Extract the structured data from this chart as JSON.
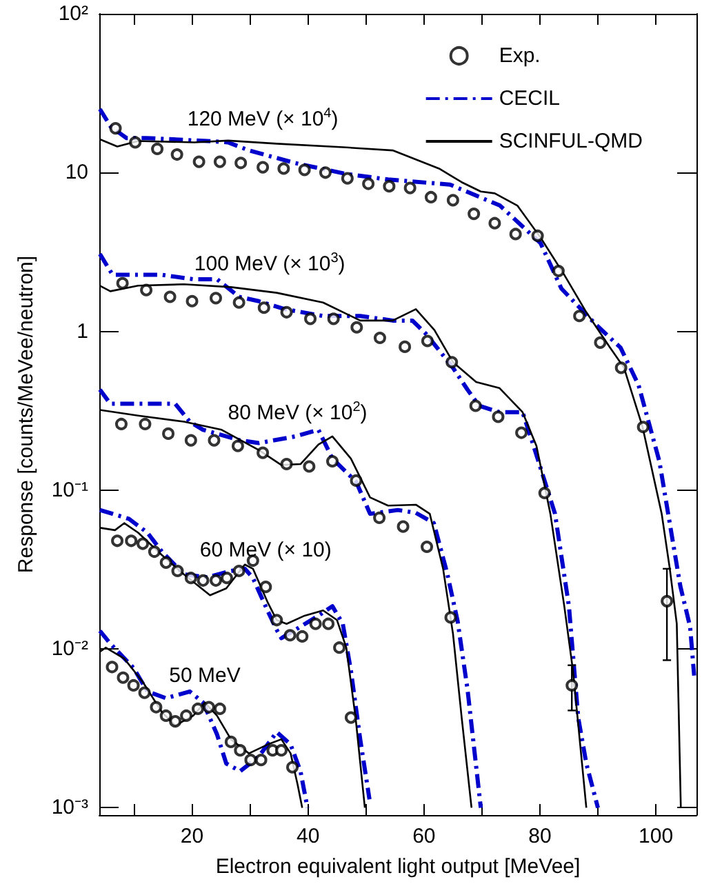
{
  "chart_data": {
    "type": "line",
    "xlabel": "Electron equivalent light output [MeVee]",
    "ylabel": "Response [counts/MeVee/neutron]",
    "annotations": [
      "120 MeV (× 10$^{4}$)",
      "100 MeV (× 10$^{3}$)",
      "80 MeV (× 10$^{2}$)",
      "60 MeV (× 10)",
      "50 MeV"
    ],
    "xlim": [
      4,
      107
    ],
    "ylim": [
      0.0009,
      100
    ],
    "log": "y",
    "legend": "top right",
    "marker": "none",
    "xticks": [
      {
        "value": 10,
        "label": null
      },
      20,
      {
        "value": 30,
        "label": null
      },
      40,
      {
        "value": 50,
        "label": null
      },
      60,
      {
        "value": 70,
        "label": null
      },
      80,
      {
        "value": 90,
        "label": null
      },
      100
    ],
    "yticks": [
      {
        "value": 0.001,
        "label": "10⁻³"
      },
      {
        "value": 0.01,
        "label": "10⁻²"
      },
      {
        "value": 0.1,
        "label": "10⁻¹"
      },
      1,
      10,
      {
        "value": 100,
        "label": "10²"
      }
    ],
    "series": [
      {
        "name": "Exp.",
        "type": "scatter",
        "marker": "circle",
        "color": "#000000",
        "x": [
          6.8,
          10.2,
          14.0,
          17.4,
          21.2,
          24.8,
          28.4,
          32.2,
          35.8,
          39.4,
          43.0,
          46.8,
          50.4,
          54.0,
          57.6,
          61.2,
          65.0,
          68.6,
          72.2,
          75.8,
          79.6,
          83.2,
          86.8,
          90.4,
          94.0,
          97.8,
          101.9
        ],
        "values": [
          19.0,
          15.5,
          14.1,
          13.0,
          11.7,
          11.7,
          11.5,
          10.8,
          10.6,
          10.4,
          10.0,
          9.2,
          8.5,
          8.2,
          8.0,
          7.0,
          6.7,
          5.5,
          4.8,
          4.1,
          4.0,
          2.4,
          1.25,
          0.85,
          0.59,
          0.25,
          0.02
        ],
        "errors": [
          null,
          null,
          null,
          null,
          null,
          null,
          null,
          null,
          null,
          null,
          null,
          null,
          null,
          null,
          null,
          null,
          null,
          null,
          null,
          null,
          null,
          null,
          null,
          null,
          null,
          null,
          [
            0.0085,
            0.032
          ]
        ]
      },
      {
        "type": "scatter",
        "marker": "circle",
        "color": "#000000",
        "x": [
          8.0,
          12.1,
          16.2,
          20.0,
          24.1,
          28.1,
          32.4,
          36.3,
          40.4,
          44.4,
          48.4,
          52.4,
          56.7,
          60.6,
          64.8,
          68.9,
          72.8,
          76.8,
          80.8,
          85.5
        ],
        "values": [
          2.01,
          1.82,
          1.65,
          1.55,
          1.62,
          1.52,
          1.41,
          1.32,
          1.2,
          1.2,
          1.06,
          0.91,
          0.8,
          0.87,
          0.64,
          0.34,
          0.29,
          0.23,
          0.096,
          0.0059
        ],
        "errors": [
          null,
          null,
          null,
          null,
          null,
          null,
          null,
          null,
          null,
          null,
          null,
          null,
          null,
          null,
          null,
          null,
          null,
          null,
          null,
          [
            0.0041,
            0.0079
          ]
        ]
      },
      {
        "type": "scatter",
        "marker": "circle",
        "color": "#000000",
        "x": [
          7.8,
          11.9,
          15.9,
          19.8,
          23.8,
          27.9,
          32.2,
          36.3,
          40.2,
          44.2,
          48.3,
          52.3,
          56.4,
          60.5,
          64.6
        ],
        "values": [
          0.261,
          0.261,
          0.227,
          0.206,
          0.206,
          0.19,
          0.172,
          0.146,
          0.141,
          0.152,
          0.115,
          0.067,
          0.059,
          0.044,
          0.0158
        ]
      },
      {
        "type": "scatter",
        "marker": "circle",
        "color": "#000000",
        "x": [
          7.1,
          9.5,
          11.5,
          13.5,
          15.5,
          17.5,
          19.8,
          21.9,
          24.1,
          26.0,
          28.1,
          30.5,
          32.7,
          34.6,
          36.9,
          39.0,
          41.3,
          43.5,
          45.4,
          47.4
        ],
        "values": [
          0.048,
          0.048,
          0.046,
          0.041,
          0.035,
          0.031,
          0.028,
          0.027,
          0.027,
          0.028,
          0.031,
          0.036,
          0.0246,
          0.0152,
          0.0122,
          0.012,
          0.0144,
          0.0144,
          0.0102,
          0.0037
        ]
      },
      {
        "type": "scatter",
        "marker": "circle",
        "color": "#000000",
        "x": [
          6.2,
          8.1,
          9.9,
          11.8,
          13.8,
          15.5,
          17.1,
          19.0,
          21.0,
          22.9,
          24.8,
          26.7,
          28.3,
          30.1,
          31.9,
          33.9,
          35.4,
          37.3
        ],
        "values": [
          0.0077,
          0.0066,
          0.0059,
          0.0053,
          0.0043,
          0.0038,
          0.0035,
          0.0038,
          0.0042,
          0.0043,
          0.0042,
          0.0026,
          0.0023,
          0.002,
          0.002,
          0.0023,
          0.0023,
          0.0018
        ]
      },
      {
        "name": "CECIL",
        "type": "line",
        "line_style": "dashed",
        "color": "#0000cc",
        "x": [
          4.1,
          6.0,
          8.7,
          12.1,
          22.6,
          26.2,
          29.8,
          37.7,
          46.6,
          53.8,
          64.5,
          73.1,
          80.1,
          83.7,
          89.7,
          93.9,
          97.0,
          100.6,
          104.2,
          105.9,
          106.6
        ],
        "values": [
          25.1,
          19.4,
          16.5,
          16.5,
          15.8,
          15.5,
          13.8,
          11.5,
          9.8,
          9.05,
          8.4,
          6.2,
          3.6,
          1.86,
          1.1,
          0.79,
          0.46,
          0.152,
          0.025,
          0.0138,
          0.0068
        ]
      },
      {
        "type": "line",
        "line_style": "dashed",
        "color": "#0000cc",
        "x": [
          4.1,
          6.3,
          10.7,
          14.8,
          20.2,
          24.3,
          28.1,
          31.5,
          36.0,
          42.6,
          49.0,
          54.6,
          58.0,
          60.4,
          65.0,
          67.5,
          69.5,
          73.0,
          77.0,
          78.6,
          82.6,
          85.0,
          86.6,
          88.0,
          90.0
        ],
        "values": [
          3.07,
          2.27,
          2.27,
          2.27,
          2.13,
          2.13,
          1.65,
          1.55,
          1.38,
          1.25,
          1.25,
          1.17,
          1.17,
          0.96,
          0.59,
          0.43,
          0.34,
          0.31,
          0.31,
          0.206,
          0.071,
          0.0186,
          0.0037,
          0.0019,
          0.001
        ]
      },
      {
        "type": "line",
        "line_style": "dashed",
        "color": "#0000cc",
        "x": [
          4.1,
          5.9,
          8.3,
          17.1,
          19.6,
          21.9,
          28.3,
          31.5,
          37.8,
          41.8,
          44.2,
          48.3,
          50.7,
          55.5,
          58.6,
          61.7,
          64.0,
          65.8,
          67.5,
          69.8
        ],
        "values": [
          0.43,
          0.35,
          0.35,
          0.35,
          0.27,
          0.24,
          0.206,
          0.198,
          0.218,
          0.24,
          0.158,
          0.113,
          0.071,
          0.075,
          0.072,
          0.062,
          0.03,
          0.015,
          0.0056,
          0.001
        ]
      },
      {
        "type": "line",
        "line_style": "dashed",
        "color": "#0000cc",
        "x": [
          4.1,
          6.3,
          9.1,
          12.3,
          14.8,
          18.6,
          22.6,
          26.7,
          29.1,
          30.5,
          33.0,
          34.6,
          35.4,
          37.8,
          41.8,
          44.2,
          46.0,
          47.4,
          49.0,
          50.6
        ],
        "values": [
          0.075,
          0.071,
          0.066,
          0.054,
          0.041,
          0.0295,
          0.0283,
          0.031,
          0.032,
          0.028,
          0.0175,
          0.0132,
          0.0117,
          0.0132,
          0.0162,
          0.0186,
          0.0144,
          0.0073,
          0.0027,
          0.00113
        ]
      },
      {
        "type": "line",
        "line_style": "dashed",
        "color": "#0000cc",
        "x": [
          4.1,
          5.9,
          9.9,
          12.3,
          15.5,
          19.6,
          21.9,
          24.3,
          25.9,
          28.3,
          31.5,
          34.6,
          37.0,
          38.7,
          39.9
        ],
        "values": [
          0.013,
          0.0108,
          0.0076,
          0.0054,
          0.0049,
          0.0054,
          0.0046,
          0.0029,
          0.0019,
          0.0017,
          0.0021,
          0.003,
          0.0025,
          0.0017,
          0.001
        ]
      },
      {
        "name": "SCINFUL-QMD",
        "type": "line",
        "line_style": "solid",
        "color": "#000000",
        "x": [
          4.1,
          7.1,
          10.7,
          20.4,
          26.2,
          34.6,
          46.6,
          54.6,
          62.6,
          66.5,
          69.8,
          72.2,
          76.1,
          80.1,
          84.2,
          88.0,
          92.1,
          94.5,
          97.7,
          101.0,
          102.4,
          103.6,
          104.3
        ],
        "values": [
          16.2,
          14.6,
          15.8,
          15.5,
          15.9,
          15.2,
          14.4,
          13.8,
          10.6,
          8.7,
          7.6,
          7.4,
          6.2,
          3.9,
          2.27,
          1.32,
          0.79,
          0.59,
          0.25,
          0.071,
          0.032,
          0.0144,
          0.001
        ]
      },
      {
        "type": "line",
        "line_style": "solid",
        "color": "#000000",
        "x": [
          4.1,
          5.9,
          10.7,
          18.6,
          26.7,
          34.6,
          42.6,
          49.0,
          54.6,
          58.6,
          61.8,
          65.0,
          69.0,
          73.0,
          77.0,
          79.4,
          81.8,
          84.2,
          85.7,
          88.0
        ],
        "values": [
          1.94,
          1.79,
          1.94,
          1.98,
          1.9,
          1.75,
          1.52,
          1.17,
          1.17,
          1.38,
          1.02,
          0.64,
          0.48,
          0.44,
          0.31,
          0.19,
          0.071,
          0.0186,
          0.0073,
          0.001
        ]
      },
      {
        "type": "line",
        "line_style": "solid",
        "color": "#000000",
        "x": [
          4.1,
          10.7,
          18.6,
          25.1,
          31.5,
          35.4,
          38.7,
          41.8,
          44.2,
          47.4,
          50.7,
          53.8,
          58.6,
          61.0,
          63.3,
          65.0,
          66.5,
          68.2
        ],
        "values": [
          0.32,
          0.295,
          0.27,
          0.24,
          0.179,
          0.144,
          0.146,
          0.194,
          0.218,
          0.158,
          0.09,
          0.08,
          0.081,
          0.071,
          0.032,
          0.0125,
          0.0037,
          0.001
        ]
      },
      {
        "type": "line",
        "line_style": "solid",
        "color": "#000000",
        "x": [
          4.1,
          6.7,
          8.3,
          10.7,
          14.8,
          18.6,
          23.1,
          25.9,
          29.1,
          30.5,
          33.0,
          34.6,
          36.3,
          39.4,
          42.6,
          45.0,
          46.6,
          48.2,
          49.8
        ],
        "values": [
          0.058,
          0.056,
          0.062,
          0.054,
          0.039,
          0.0295,
          0.0218,
          0.0241,
          0.034,
          0.032,
          0.0198,
          0.0152,
          0.0144,
          0.0162,
          0.0175,
          0.0152,
          0.0102,
          0.0037,
          0.001
        ]
      },
      {
        "type": "line",
        "line_style": "solid",
        "color": "#000000",
        "x": [
          4.1,
          5.1,
          8.3,
          11.5,
          14.8,
          17.1,
          20.2,
          22.2,
          24.3,
          26.7,
          29.8,
          33.0,
          35.4,
          37.0,
          38.2,
          39.0
        ],
        "values": [
          0.0096,
          0.0102,
          0.0087,
          0.0062,
          0.004,
          0.0033,
          0.0038,
          0.0046,
          0.0038,
          0.0027,
          0.0022,
          0.0025,
          0.0027,
          0.0022,
          0.0014,
          0.001
        ]
      }
    ]
  }
}
